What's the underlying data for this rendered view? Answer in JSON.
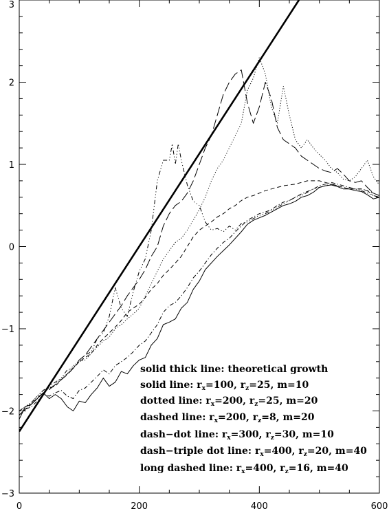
{
  "chart_data": {
    "type": "line",
    "title": "",
    "xlabel": "",
    "ylabel": "",
    "xlim": [
      0,
      600
    ],
    "ylim": [
      -3,
      3
    ],
    "xticks": [
      0,
      200,
      400,
      600
    ],
    "xtick_labels": [
      "0",
      "200",
      "400",
      "600"
    ],
    "yticks": [
      -3,
      -2,
      -1,
      0,
      1,
      2,
      3
    ],
    "ytick_labels": [
      "−3",
      "−2",
      "−1",
      "0",
      "1",
      "2",
      "3"
    ],
    "grid": false,
    "legend_position": "bottom-right",
    "legend": [
      {
        "line": "solid thick line",
        "desc": "theoretical growth"
      },
      {
        "line": "solid line",
        "rx": "100",
        "rz": "25",
        "m": "10"
      },
      {
        "line": "dotted line",
        "rx": "200",
        "rz": "25",
        "m": "20"
      },
      {
        "line": "dashed line",
        "rx": "200",
        "rz": "8",
        "m": "20"
      },
      {
        "line": "dash−dot line",
        "rx": "300",
        "rz": "30",
        "m": "10"
      },
      {
        "line": "dash−triple dot line",
        "rx": "400",
        "rz": "20",
        "m": "40"
      },
      {
        "line": "long dashed line",
        "rx": "400",
        "rz": "16",
        "m": "40"
      }
    ],
    "series": [
      {
        "style": "solid-thick",
        "x": [
          0,
          466
        ],
        "y": [
          -2.25,
          3.0
        ]
      },
      {
        "style": "solid",
        "x": [
          0,
          10,
          20,
          30,
          40,
          50,
          60,
          70,
          80,
          90,
          100,
          110,
          120,
          130,
          140,
          150,
          160,
          170,
          180,
          190,
          200,
          210,
          220,
          230,
          240,
          250,
          260,
          270,
          280,
          290,
          300,
          310,
          320,
          330,
          340,
          350,
          360,
          370,
          380,
          390,
          400,
          410,
          420,
          430,
          440,
          450,
          460,
          470,
          480,
          490,
          500,
          510,
          520,
          530,
          540,
          550,
          560,
          570,
          580,
          590,
          600
        ],
        "y": [
          -2.1,
          -1.95,
          -1.92,
          -1.85,
          -1.78,
          -1.85,
          -1.8,
          -1.85,
          -1.95,
          -2.0,
          -1.88,
          -1.9,
          -1.8,
          -1.72,
          -1.6,
          -1.7,
          -1.65,
          -1.52,
          -1.55,
          -1.45,
          -1.38,
          -1.35,
          -1.2,
          -1.12,
          -0.95,
          -0.92,
          -0.88,
          -0.75,
          -0.68,
          -0.52,
          -0.42,
          -0.28,
          -0.2,
          -0.12,
          -0.05,
          0.02,
          0.1,
          0.18,
          0.27,
          0.32,
          0.35,
          0.38,
          0.42,
          0.46,
          0.5,
          0.52,
          0.55,
          0.6,
          0.62,
          0.66,
          0.72,
          0.74,
          0.75,
          0.73,
          0.7,
          0.7,
          0.68,
          0.67,
          0.63,
          0.58,
          0.6
        ]
      },
      {
        "style": "dotted",
        "x": [
          0,
          10,
          20,
          30,
          40,
          50,
          60,
          70,
          80,
          90,
          100,
          110,
          120,
          130,
          140,
          150,
          160,
          170,
          180,
          190,
          200,
          210,
          220,
          230,
          240,
          250,
          260,
          270,
          280,
          290,
          300,
          310,
          320,
          330,
          340,
          350,
          360,
          370,
          380,
          390,
          400,
          410,
          420,
          430,
          440,
          450,
          460,
          470,
          480,
          490,
          500,
          510,
          520,
          530,
          540,
          550,
          560,
          570,
          580,
          590,
          600
        ],
        "y": [
          -2.0,
          -1.95,
          -1.9,
          -1.82,
          -1.75,
          -1.72,
          -1.68,
          -1.6,
          -1.55,
          -1.45,
          -1.4,
          -1.38,
          -1.3,
          -1.22,
          -1.15,
          -1.1,
          -1.0,
          -0.95,
          -0.88,
          -0.82,
          -0.75,
          -0.6,
          -0.45,
          -0.3,
          -0.15,
          -0.05,
          0.05,
          0.1,
          0.2,
          0.32,
          0.45,
          0.6,
          0.8,
          0.95,
          1.05,
          1.2,
          1.35,
          1.5,
          1.9,
          2.05,
          2.3,
          2.1,
          1.7,
          1.5,
          1.95,
          1.6,
          1.3,
          1.2,
          1.3,
          1.2,
          1.12,
          1.05,
          0.95,
          0.9,
          0.82,
          0.8,
          0.85,
          0.95,
          1.05,
          0.85,
          0.75
        ]
      },
      {
        "style": "dashed",
        "x": [
          0,
          10,
          20,
          30,
          40,
          50,
          60,
          70,
          80,
          90,
          100,
          110,
          120,
          130,
          140,
          150,
          160,
          170,
          180,
          190,
          200,
          210,
          220,
          230,
          240,
          250,
          260,
          270,
          280,
          290,
          300,
          310,
          320,
          330,
          340,
          350,
          360,
          370,
          380,
          390,
          400,
          410,
          420,
          430,
          440,
          450,
          460,
          470,
          480,
          490,
          500,
          510,
          520,
          530,
          540,
          550,
          560,
          570,
          580,
          590,
          600
        ],
        "y": [
          -2.05,
          -1.98,
          -1.92,
          -1.85,
          -1.78,
          -1.72,
          -1.7,
          -1.62,
          -1.55,
          -1.48,
          -1.4,
          -1.35,
          -1.3,
          -1.2,
          -1.12,
          -1.05,
          -0.98,
          -0.9,
          -0.8,
          -0.75,
          -0.7,
          -0.62,
          -0.52,
          -0.45,
          -0.35,
          -0.28,
          -0.2,
          -0.12,
          0.0,
          0.12,
          0.2,
          0.25,
          0.3,
          0.36,
          0.4,
          0.46,
          0.5,
          0.56,
          0.6,
          0.62,
          0.65,
          0.68,
          0.7,
          0.72,
          0.74,
          0.75,
          0.76,
          0.78,
          0.8,
          0.8,
          0.8,
          0.78,
          0.76,
          0.74,
          0.72,
          0.7,
          0.7,
          0.7,
          0.68,
          0.65,
          0.62
        ]
      },
      {
        "style": "dash-dot",
        "x": [
          0,
          10,
          20,
          30,
          40,
          50,
          60,
          70,
          80,
          90,
          100,
          110,
          120,
          130,
          140,
          150,
          160,
          170,
          180,
          190,
          200,
          210,
          220,
          230,
          240,
          250,
          260,
          270,
          280,
          290,
          300,
          310,
          320,
          330,
          340,
          350,
          360,
          370,
          380,
          390,
          400,
          410,
          420,
          430,
          440,
          450,
          460,
          470,
          480,
          490,
          500,
          510,
          520,
          530,
          540,
          550,
          560,
          570,
          580,
          590,
          600
        ],
        "y": [
          -2.05,
          -1.98,
          -1.95,
          -1.88,
          -1.8,
          -1.82,
          -1.78,
          -1.75,
          -1.82,
          -1.85,
          -1.75,
          -1.72,
          -1.65,
          -1.58,
          -1.5,
          -1.55,
          -1.45,
          -1.4,
          -1.35,
          -1.28,
          -1.2,
          -1.15,
          -1.05,
          -0.95,
          -0.8,
          -0.72,
          -0.68,
          -0.6,
          -0.5,
          -0.38,
          -0.3,
          -0.2,
          -0.1,
          -0.02,
          0.05,
          0.1,
          0.18,
          0.25,
          0.32,
          0.36,
          0.4,
          0.42,
          0.45,
          0.5,
          0.54,
          0.56,
          0.6,
          0.64,
          0.67,
          0.7,
          0.74,
          0.76,
          0.78,
          0.76,
          0.74,
          0.72,
          0.7,
          0.7,
          0.68,
          0.62,
          0.6
        ]
      },
      {
        "style": "dash-triple-dot",
        "x": [
          0,
          10,
          20,
          30,
          40,
          50,
          60,
          70,
          80,
          90,
          100,
          110,
          120,
          130,
          140,
          150,
          160,
          170,
          180,
          190,
          200,
          210,
          220,
          230,
          240,
          250,
          255,
          260,
          265,
          270,
          280,
          290,
          300,
          310,
          320,
          330,
          340,
          350,
          360,
          370,
          380,
          390,
          400,
          410,
          420,
          430,
          440,
          450,
          460,
          470,
          480,
          490,
          500,
          510,
          520,
          530,
          540,
          550,
          560,
          570,
          580,
          590,
          600
        ],
        "y": [
          -2.0,
          -1.95,
          -1.9,
          -1.82,
          -1.75,
          -1.7,
          -1.65,
          -1.6,
          -1.5,
          -1.48,
          -1.4,
          -1.32,
          -1.28,
          -1.12,
          -1.05,
          -0.85,
          -0.5,
          -0.75,
          -0.85,
          -0.55,
          -0.3,
          -0.15,
          0.2,
          0.8,
          1.05,
          1.05,
          1.25,
          1.0,
          1.25,
          1.05,
          0.75,
          0.55,
          0.5,
          0.3,
          0.2,
          0.22,
          0.18,
          0.25,
          0.2,
          0.28,
          0.3,
          0.34,
          0.38,
          0.4,
          0.44,
          0.48,
          0.52,
          0.56,
          0.6,
          0.62,
          0.66,
          0.7,
          0.72,
          0.74,
          0.76,
          0.74,
          0.72,
          0.7,
          0.7,
          0.68,
          0.65,
          0.62,
          0.6
        ]
      },
      {
        "style": "long-dashed",
        "x": [
          0,
          10,
          20,
          30,
          40,
          50,
          60,
          70,
          80,
          90,
          100,
          110,
          120,
          130,
          140,
          150,
          160,
          170,
          180,
          190,
          200,
          210,
          220,
          230,
          240,
          250,
          260,
          270,
          280,
          290,
          300,
          310,
          320,
          330,
          340,
          350,
          360,
          370,
          380,
          390,
          400,
          410,
          420,
          430,
          440,
          450,
          460,
          470,
          480,
          490,
          500,
          510,
          520,
          530,
          540,
          550,
          560,
          570,
          580,
          590,
          600
        ],
        "y": [
          -2.05,
          -1.98,
          -1.92,
          -1.84,
          -1.78,
          -1.74,
          -1.68,
          -1.62,
          -1.56,
          -1.48,
          -1.38,
          -1.32,
          -1.22,
          -1.12,
          -1.02,
          -0.92,
          -0.82,
          -0.72,
          -0.6,
          -0.5,
          -0.4,
          -0.28,
          -0.12,
          0.0,
          0.25,
          0.4,
          0.5,
          0.55,
          0.65,
          0.8,
          1.0,
          1.2,
          1.35,
          1.6,
          1.85,
          2.0,
          2.1,
          2.15,
          1.75,
          1.5,
          1.7,
          2.0,
          1.8,
          1.45,
          1.3,
          1.25,
          1.2,
          1.1,
          1.05,
          1.0,
          0.95,
          0.92,
          0.9,
          0.95,
          0.88,
          0.8,
          0.78,
          0.8,
          0.72,
          0.65,
          0.62
        ]
      }
    ]
  }
}
